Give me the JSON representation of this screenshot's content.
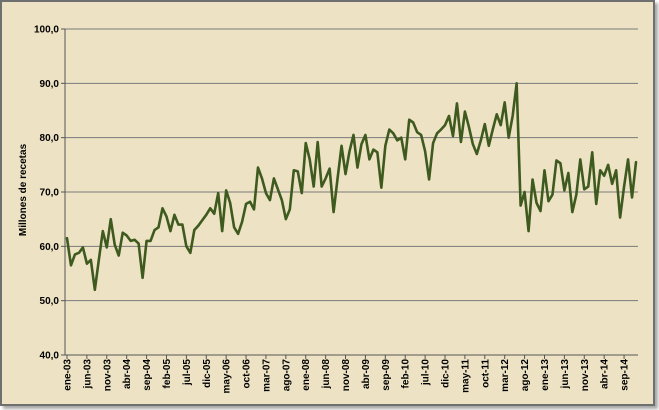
{
  "chart_data": {
    "type": "line",
    "title": "",
    "xlabel": "",
    "ylabel": "Millones de recetas",
    "ylim": [
      40,
      100
    ],
    "yticks": [
      "40,0",
      "50,0",
      "60,0",
      "70,0",
      "80,0",
      "90,0",
      "100,0"
    ],
    "ytick_values": [
      40,
      50,
      60,
      70,
      80,
      90,
      100
    ],
    "grid": true,
    "legend": "none",
    "line_color": "#3f5a1e",
    "x_start": "2003-01",
    "xtick_labels": [
      "ene-03",
      "jun-03",
      "nov-03",
      "abr-04",
      "sep-04",
      "feb-05",
      "jul-05",
      "dic-05",
      "may-06",
      "oct-06",
      "mar-07",
      "ago-07",
      "ene-08",
      "jun-08",
      "nov-08",
      "abr-09",
      "sep-09",
      "feb-10",
      "jul-10",
      "dic-10",
      "may-11",
      "oct-11",
      "mar-12",
      "ago-12",
      "ene-13",
      "jun-13",
      "nov-13",
      "abr-14",
      "sep-14"
    ],
    "series": [
      {
        "values": [
          61.5,
          56.5,
          58.5,
          58.8,
          59.8,
          56.8,
          57.5,
          52.0,
          57.5,
          62.8,
          59.8,
          65.0,
          60.3,
          58.3,
          62.5,
          62.0,
          61.0,
          61.2,
          60.5,
          54.2,
          61.0,
          61.0,
          63.0,
          63.5,
          67.0,
          65.5,
          62.8,
          65.8,
          64.0,
          64.0,
          60.0,
          58.8,
          63.0,
          63.8,
          64.8,
          65.8,
          67.0,
          66.0,
          69.8,
          62.8,
          70.3,
          68.0,
          63.5,
          62.3,
          64.5,
          67.8,
          68.2,
          66.8,
          74.5,
          72.5,
          69.8,
          68.5,
          72.5,
          70.5,
          68.5,
          65.0,
          66.8,
          74.0,
          73.8,
          69.8,
          79.0,
          76.0,
          71.0,
          79.2,
          71.0,
          72.5,
          74.3,
          66.3,
          72.5,
          78.5,
          73.3,
          77.5,
          80.5,
          74.5,
          78.8,
          80.5,
          76.0,
          77.8,
          77.3,
          70.8,
          78.5,
          81.5,
          80.8,
          79.5,
          80.0,
          76.0,
          83.3,
          82.8,
          81.0,
          80.5,
          77.5,
          72.3,
          79.0,
          80.8,
          81.5,
          82.3,
          84.0,
          80.3,
          86.3,
          79.2,
          84.8,
          82.0,
          78.8,
          77.0,
          79.5,
          82.5,
          78.5,
          81.5,
          84.3,
          82.3,
          86.5,
          80.0,
          84.0,
          90.0,
          67.5,
          70.0,
          62.8,
          72.3,
          68.0,
          66.5,
          74.0,
          68.3,
          69.5,
          75.8,
          75.3,
          70.3,
          73.5,
          66.3,
          69.5,
          76.0,
          70.5,
          71.0,
          77.3,
          67.8,
          74.0,
          73.0,
          75.0,
          71.5,
          74.0,
          65.3,
          71.0,
          76.0,
          69.0,
          75.5
        ]
      }
    ]
  }
}
